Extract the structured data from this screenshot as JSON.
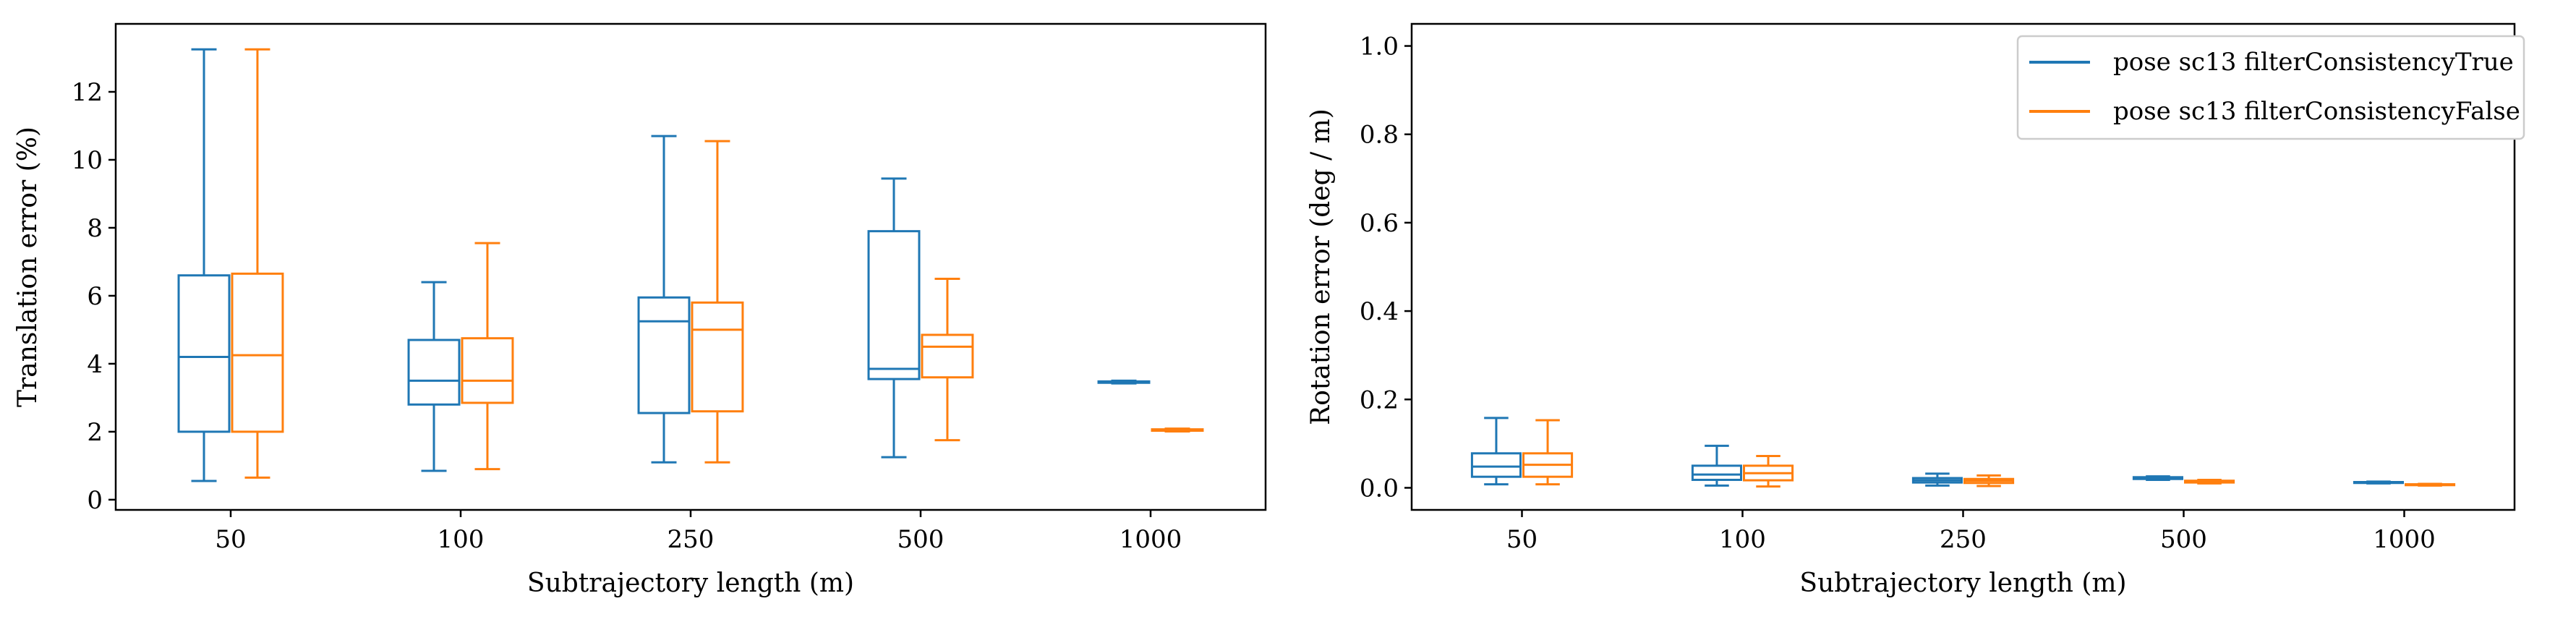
{
  "colors": {
    "series_true": "#1f77b4",
    "series_false": "#ff7f0e",
    "axes": "#000000",
    "legend_border": "#cccccc"
  },
  "legend": {
    "entries": [
      "pose sc13 filterConsistencyTrue",
      "pose sc13 filterConsistencyFalse"
    ],
    "placement": "top-right of right panel"
  },
  "chart_data": [
    {
      "type": "box",
      "title": "",
      "xlabel": "Subtrajectory length (m)",
      "ylabel": "Translation error (%)",
      "categories": [
        "50",
        "100",
        "250",
        "500",
        "1000"
      ],
      "ylim": [
        -0.3,
        14
      ],
      "yticks": [
        0,
        2,
        4,
        6,
        8,
        10,
        12
      ],
      "ytick_labels": [
        "0",
        "2",
        "4",
        "6",
        "8",
        "10",
        "12"
      ],
      "grid": false,
      "series": [
        {
          "name": "pose sc13 filterConsistencyTrue",
          "boxes": [
            {
              "min": 0.55,
              "q1": 2.0,
              "median": 4.2,
              "q3": 6.6,
              "max": 13.25
            },
            {
              "min": 0.85,
              "q1": 2.8,
              "median": 3.5,
              "q3": 4.7,
              "max": 6.4
            },
            {
              "min": 1.1,
              "q1": 2.55,
              "median": 5.25,
              "q3": 5.95,
              "max": 10.7
            },
            {
              "min": 1.25,
              "q1": 3.55,
              "median": 3.85,
              "q3": 7.9,
              "max": 9.45
            },
            {
              "min": 3.42,
              "q1": 3.44,
              "median": 3.46,
              "q3": 3.48,
              "max": 3.5
            }
          ]
        },
        {
          "name": "pose sc13 filterConsistencyFalse",
          "boxes": [
            {
              "min": 0.65,
              "q1": 2.0,
              "median": 4.25,
              "q3": 6.65,
              "max": 13.25
            },
            {
              "min": 0.9,
              "q1": 2.85,
              "median": 3.5,
              "q3": 4.75,
              "max": 7.55
            },
            {
              "min": 1.1,
              "q1": 2.6,
              "median": 5.0,
              "q3": 5.8,
              "max": 10.55
            },
            {
              "min": 1.75,
              "q1": 3.6,
              "median": 4.5,
              "q3": 4.85,
              "max": 6.5
            },
            {
              "min": 2.01,
              "q1": 2.03,
              "median": 2.05,
              "q3": 2.07,
              "max": 2.09
            }
          ]
        }
      ]
    },
    {
      "type": "box",
      "title": "",
      "xlabel": "Subtrajectory length (m)",
      "ylabel": "Rotation error (deg / m)",
      "categories": [
        "50",
        "100",
        "250",
        "500",
        "1000"
      ],
      "ylim": [
        -0.05,
        1.05
      ],
      "yticks": [
        0.0,
        0.2,
        0.4,
        0.6,
        0.8,
        1.0
      ],
      "ytick_labels": [
        "0.0",
        "0.2",
        "0.4",
        "0.6",
        "0.8",
        "1.0"
      ],
      "grid": false,
      "series": [
        {
          "name": "pose sc13 filterConsistencyTrue",
          "boxes": [
            {
              "min": 0.008,
              "q1": 0.025,
              "median": 0.048,
              "q3": 0.078,
              "max": 0.158
            },
            {
              "min": 0.005,
              "q1": 0.018,
              "median": 0.03,
              "q3": 0.05,
              "max": 0.095
            },
            {
              "min": 0.005,
              "q1": 0.012,
              "median": 0.017,
              "q3": 0.022,
              "max": 0.032
            },
            {
              "min": 0.018,
              "q1": 0.02,
              "median": 0.022,
              "q3": 0.024,
              "max": 0.026
            },
            {
              "min": 0.01,
              "q1": 0.011,
              "median": 0.012,
              "q3": 0.013,
              "max": 0.014
            }
          ]
        },
        {
          "name": "pose sc13 filterConsistencyFalse",
          "boxes": [
            {
              "min": 0.008,
              "q1": 0.025,
              "median": 0.052,
              "q3": 0.078,
              "max": 0.153
            },
            {
              "min": 0.003,
              "q1": 0.017,
              "median": 0.033,
              "q3": 0.05,
              "max": 0.072
            },
            {
              "min": 0.004,
              "q1": 0.011,
              "median": 0.016,
              "q3": 0.02,
              "max": 0.028
            },
            {
              "min": 0.01,
              "q1": 0.012,
              "median": 0.014,
              "q3": 0.016,
              "max": 0.018
            },
            {
              "min": 0.005,
              "q1": 0.006,
              "median": 0.007,
              "q3": 0.008,
              "max": 0.009
            }
          ]
        }
      ]
    }
  ]
}
